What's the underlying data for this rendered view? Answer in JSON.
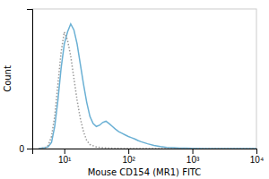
{
  "chart_data": {
    "type": "line",
    "xlabel": "Mouse CD154 (MR1) FITC",
    "ylabel": "Count",
    "xlim": [
      0.5,
      4
    ],
    "xticks": [
      {
        "value": 1,
        "label": "10¹"
      },
      {
        "value": 2,
        "label": "10²"
      },
      {
        "value": 3,
        "label": "10³"
      },
      {
        "value": 4,
        "label": "10⁴"
      }
    ],
    "ylim": [
      0,
      347.2
    ],
    "yticks": [
      0
    ],
    "series": [
      {
        "color": "#6ab0d4",
        "line_style": "solid",
        "x": [
          0.6,
          0.7,
          0.75,
          0.8,
          0.85,
          0.9,
          0.95,
          1.0,
          1.05,
          1.1,
          1.15,
          1.2,
          1.25,
          1.3,
          1.35,
          1.4,
          1.45,
          1.5,
          1.55,
          1.6,
          1.65,
          1.7,
          1.75,
          1.8,
          1.85,
          1.9,
          1.95,
          2.0,
          2.05,
          2.1,
          2.15,
          2.2,
          2.3,
          2.4,
          2.5,
          2.6,
          2.7,
          2.8,
          2.9,
          3.0,
          3.2,
          3.5,
          4.0
        ],
        "values": [
          0,
          2,
          5,
          15,
          55,
          120,
          200,
          260,
          290,
          310,
          295,
          260,
          210,
          160,
          115,
          80,
          62,
          55,
          58,
          65,
          68,
          62,
          55,
          48,
          42,
          38,
          34,
          30,
          27,
          24,
          20,
          17,
          12,
          8,
          5,
          3,
          2,
          1,
          1,
          0.5,
          0.2,
          0.1,
          0
        ]
      },
      {
        "color": "#999999",
        "line_style": "dotted",
        "x": [
          0.6,
          0.7,
          0.75,
          0.8,
          0.85,
          0.9,
          0.95,
          1.0,
          1.05,
          1.1,
          1.15,
          1.2,
          1.25,
          1.3,
          1.35,
          1.4,
          1.5,
          1.6,
          1.7,
          1.8,
          1.9,
          2.0,
          2.2,
          2.5,
          3.0,
          4.0
        ],
        "values": [
          0,
          2,
          8,
          30,
          80,
          160,
          240,
          290,
          270,
          230,
          175,
          120,
          75,
          42,
          20,
          10,
          4,
          2,
          1,
          0.5,
          0.2,
          0.1,
          0.05,
          0.02,
          0.01,
          0
        ]
      }
    ]
  }
}
